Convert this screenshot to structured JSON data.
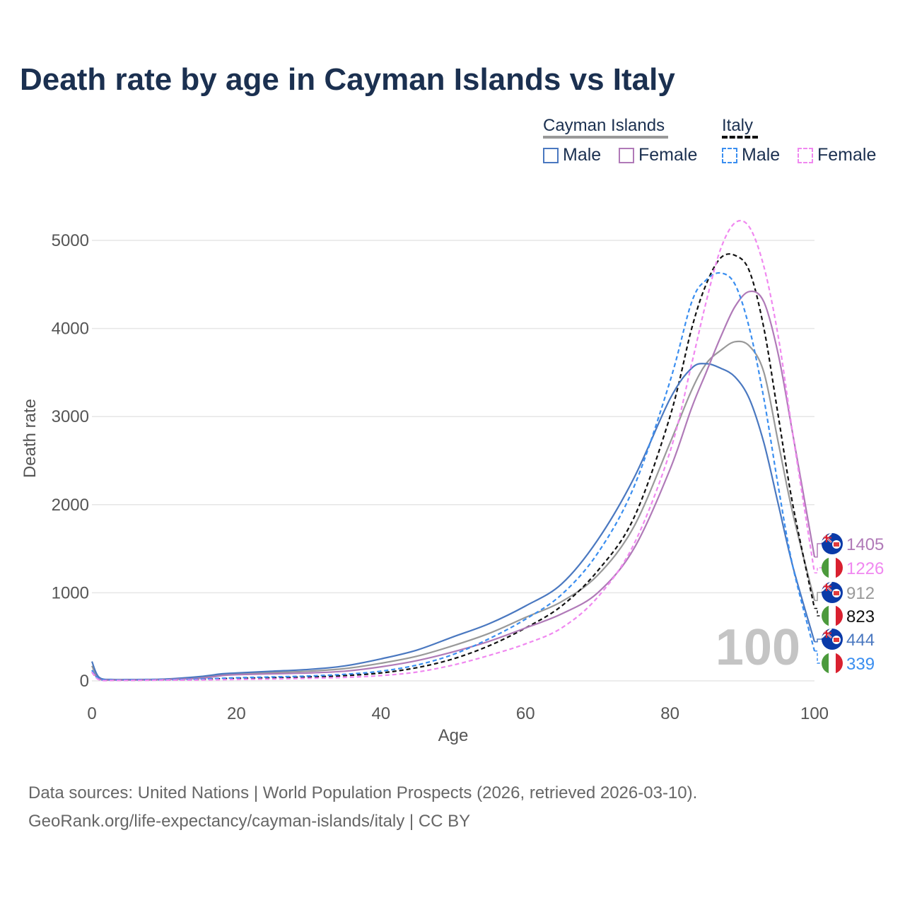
{
  "title": "Death rate by age in Cayman Islands vs Italy",
  "legend": {
    "groups": [
      {
        "name": "Cayman Islands",
        "underline_color": "#999999",
        "underline_style": "solid",
        "items": [
          {
            "label": "Male",
            "color": "#4a78c0",
            "dash": "solid"
          },
          {
            "label": "Female",
            "color": "#b07ab8",
            "dash": "solid"
          }
        ]
      },
      {
        "name": "Italy",
        "underline_color": "#111111",
        "underline_style": "dashed",
        "items": [
          {
            "label": "Male",
            "color": "#3a8ef0",
            "dash": "dashed"
          },
          {
            "label": "Female",
            "color": "#f088f0",
            "dash": "dashed"
          }
        ]
      }
    ]
  },
  "chart_data": {
    "type": "line",
    "title": "Death rate by age in Cayman Islands vs Italy",
    "xlabel": "Age",
    "ylabel": "Death rate",
    "xlim": [
      0,
      100
    ],
    "ylim": [
      0,
      5400
    ],
    "xticks": [
      0,
      20,
      40,
      60,
      80,
      100
    ],
    "yticks": [
      0,
      1000,
      2000,
      3000,
      4000,
      5000
    ],
    "grid": "horizontal",
    "x": [
      0,
      1,
      3,
      5,
      10,
      15,
      18,
      20,
      25,
      30,
      35,
      40,
      45,
      50,
      55,
      60,
      65,
      70,
      75,
      80,
      83,
      85,
      87,
      89,
      91,
      93,
      95,
      97,
      100
    ],
    "series": [
      {
        "name": "Cayman Islands Total",
        "color": "#999999",
        "dash": "solid",
        "values": [
          170,
          30,
          15,
          15,
          18,
          40,
          70,
          80,
          95,
          110,
          140,
          200,
          280,
          400,
          540,
          720,
          900,
          1200,
          1750,
          2700,
          3300,
          3600,
          3750,
          3850,
          3800,
          3500,
          2700,
          1900,
          912
        ]
      },
      {
        "name": "Italy Total",
        "color": "#111111",
        "dash": "dashed",
        "values": [
          100,
          15,
          8,
          8,
          10,
          15,
          25,
          28,
          35,
          45,
          60,
          90,
          150,
          250,
          400,
          600,
          850,
          1250,
          1850,
          3000,
          4000,
          4500,
          4800,
          4830,
          4650,
          4000,
          3000,
          2000,
          823
        ]
      },
      {
        "name": "Cayman Islands Male",
        "color": "#4a78c0",
        "dash": "solid",
        "values": [
          220,
          40,
          15,
          15,
          20,
          50,
          80,
          90,
          110,
          130,
          170,
          250,
          350,
          500,
          650,
          850,
          1100,
          1600,
          2300,
          3200,
          3550,
          3600,
          3550,
          3450,
          3200,
          2700,
          2000,
          1300,
          444
        ]
      },
      {
        "name": "Cayman Islands Female",
        "color": "#b07ab8",
        "dash": "solid",
        "values": [
          120,
          20,
          10,
          10,
          15,
          30,
          60,
          70,
          80,
          90,
          110,
          160,
          230,
          330,
          450,
          600,
          760,
          1000,
          1500,
          2400,
          3100,
          3500,
          3900,
          4250,
          4420,
          4300,
          3700,
          2800,
          1405
        ]
      },
      {
        "name": "Italy Male",
        "color": "#3a8ef0",
        "dash": "dashed",
        "values": [
          120,
          20,
          10,
          10,
          12,
          20,
          30,
          35,
          45,
          55,
          75,
          110,
          180,
          300,
          480,
          700,
          980,
          1450,
          2200,
          3400,
          4300,
          4550,
          4630,
          4500,
          4000,
          3200,
          2200,
          1300,
          339
        ]
      },
      {
        "name": "Italy Female",
        "color": "#f088f0",
        "dash": "dashed",
        "values": [
          100,
          12,
          6,
          6,
          8,
          10,
          14,
          16,
          22,
          30,
          40,
          60,
          100,
          180,
          290,
          420,
          600,
          950,
          1550,
          2600,
          3600,
          4300,
          4900,
          5200,
          5150,
          4700,
          3900,
          2800,
          1226
        ]
      }
    ],
    "end_labels": [
      {
        "value": "1405",
        "flag": "cayman",
        "color": "#b07ab8"
      },
      {
        "value": "1226",
        "flag": "italy",
        "color": "#f088f0"
      },
      {
        "value": "912",
        "flag": "cayman",
        "color": "#999999"
      },
      {
        "value": "823",
        "flag": "italy",
        "color": "#111111"
      },
      {
        "value": "444",
        "flag": "cayman",
        "color": "#4a78c0"
      },
      {
        "value": "339",
        "flag": "italy",
        "color": "#3a8ef0"
      }
    ],
    "annotation": "100"
  },
  "source": {
    "line1": "Data sources: United Nations | World Population Prospects (2026, retrieved 2026-03-10).",
    "line2": "GeoRank.org/life-expectancy/cayman-islands/italy | CC BY"
  }
}
